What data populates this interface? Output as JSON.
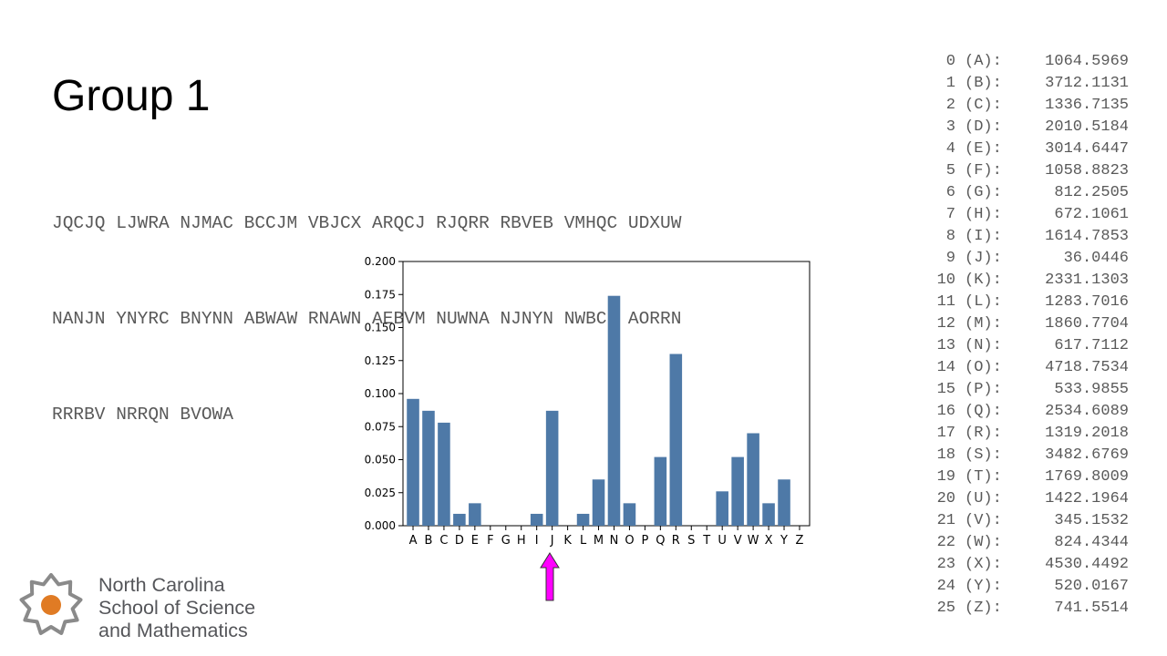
{
  "slide": {
    "title": "Group 1"
  },
  "cipher_lines": [
    "JQCJQ LJWRA NJMAC BCCJM VBJCX ARQCJ RJQRR RBVEB VMHQC UDXUW",
    "NANJN YNYRC BNYNN ABWAW RNAWN AEBVM NUWNA NJNYN NWBCN AORRN",
    "RRRBV NRRQN BVOWA"
  ],
  "chart_data": {
    "type": "bar",
    "categories": [
      "A",
      "B",
      "C",
      "D",
      "E",
      "F",
      "G",
      "H",
      "I",
      "J",
      "K",
      "L",
      "M",
      "N",
      "O",
      "P",
      "Q",
      "R",
      "S",
      "T",
      "U",
      "V",
      "W",
      "X",
      "Y",
      "Z"
    ],
    "values": [
      0.096,
      0.087,
      0.078,
      0.009,
      0.017,
      0,
      0,
      0,
      0.009,
      0.087,
      0,
      0.009,
      0.035,
      0.174,
      0.017,
      0,
      0.052,
      0.13,
      0,
      0,
      0.026,
      0.052,
      0.07,
      0.017,
      0.035,
      0
    ],
    "ylim": [
      0,
      0.2
    ],
    "yticks": [
      "0.000",
      "0.025",
      "0.050",
      "0.075",
      "0.100",
      "0.125",
      "0.150",
      "0.175",
      "0.200"
    ],
    "bar_color": "#4e79a7",
    "highlight_category": "J",
    "arrow_color": "#ff00ff"
  },
  "frequency_table": [
    {
      "index": "0",
      "letter": "(A):",
      "value": "1064.5969"
    },
    {
      "index": "1",
      "letter": "(B):",
      "value": "3712.1131"
    },
    {
      "index": "2",
      "letter": "(C):",
      "value": "1336.7135"
    },
    {
      "index": "3",
      "letter": "(D):",
      "value": "2010.5184"
    },
    {
      "index": "4",
      "letter": "(E):",
      "value": "3014.6447"
    },
    {
      "index": "5",
      "letter": "(F):",
      "value": "1058.8823"
    },
    {
      "index": "6",
      "letter": "(G):",
      "value": "812.2505"
    },
    {
      "index": "7",
      "letter": "(H):",
      "value": "672.1061"
    },
    {
      "index": "8",
      "letter": "(I):",
      "value": "1614.7853"
    },
    {
      "index": "9",
      "letter": "(J):",
      "value": "36.0446"
    },
    {
      "index": "10",
      "letter": "(K):",
      "value": "2331.1303"
    },
    {
      "index": "11",
      "letter": "(L):",
      "value": "1283.7016"
    },
    {
      "index": "12",
      "letter": "(M):",
      "value": "1860.7704"
    },
    {
      "index": "13",
      "letter": "(N):",
      "value": "617.7112"
    },
    {
      "index": "14",
      "letter": "(O):",
      "value": "4718.7534"
    },
    {
      "index": "15",
      "letter": "(P):",
      "value": "533.9855"
    },
    {
      "index": "16",
      "letter": "(Q):",
      "value": "2534.6089"
    },
    {
      "index": "17",
      "letter": "(R):",
      "value": "1319.2018"
    },
    {
      "index": "18",
      "letter": "(S):",
      "value": "3482.6769"
    },
    {
      "index": "19",
      "letter": "(T):",
      "value": "1769.8009"
    },
    {
      "index": "20",
      "letter": "(U):",
      "value": "1422.1964"
    },
    {
      "index": "21",
      "letter": "(V):",
      "value": "345.1532"
    },
    {
      "index": "22",
      "letter": "(W):",
      "value": "824.4344"
    },
    {
      "index": "23",
      "letter": "(X):",
      "value": "4530.4492"
    },
    {
      "index": "24",
      "letter": "(Y):",
      "value": "520.0167"
    },
    {
      "index": "25",
      "letter": "(Z):",
      "value": "741.5514"
    }
  ],
  "logo": {
    "lines": [
      "North Carolina",
      "School of Science",
      "and Mathematics"
    ],
    "icon": "star-seal-icon",
    "ring_color": "#8a8a8a",
    "center_color": "#e07b24"
  }
}
